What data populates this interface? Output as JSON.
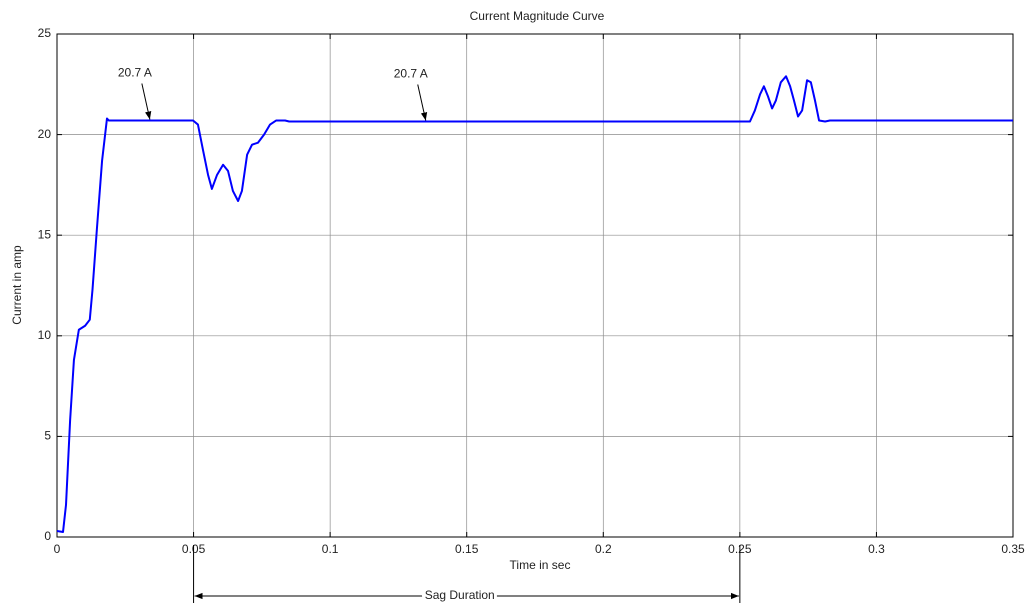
{
  "chart_data": {
    "type": "line",
    "title": "Current Magnitude Curve",
    "x_label": "Time in sec",
    "y_label": "Current in amp",
    "x": [
      0,
      0.0022,
      0.0033,
      0.0048,
      0.0062,
      0.008,
      0.0103,
      0.012,
      0.013,
      0.0146,
      0.0165,
      0.0183,
      0.019,
      0.0498,
      0.0516,
      0.0535,
      0.0553,
      0.0567,
      0.0586,
      0.0608,
      0.0626,
      0.0644,
      0.0663,
      0.0677,
      0.0696,
      0.0714,
      0.0736,
      0.0758,
      0.078,
      0.0802,
      0.0835,
      0.085,
      0.2537,
      0.2555,
      0.2574,
      0.2588,
      0.2603,
      0.2618,
      0.2632,
      0.265,
      0.2669,
      0.2684,
      0.2698,
      0.2713,
      0.2728,
      0.2746,
      0.276,
      0.2775,
      0.279,
      0.2812,
      0.283,
      0.35
    ],
    "series": [
      {
        "color": "#0000ff",
        "values": [
          0.3,
          0.25,
          1.6,
          5.8,
          8.8,
          10.3,
          10.5,
          10.8,
          12.3,
          15.3,
          18.7,
          20.8,
          20.7,
          20.7,
          20.5,
          19.2,
          18.0,
          17.3,
          18.0,
          18.5,
          18.2,
          17.2,
          16.7,
          17.2,
          19.0,
          19.5,
          19.6,
          20.0,
          20.5,
          20.7,
          20.7,
          20.65,
          20.65,
          21.2,
          22.0,
          22.4,
          21.9,
          21.3,
          21.7,
          22.6,
          22.9,
          22.4,
          21.7,
          20.9,
          21.2,
          22.7,
          22.6,
          21.7,
          20.7,
          20.65,
          20.7,
          20.7
        ]
      }
    ],
    "xlim": [
      0,
      0.35
    ],
    "xticks": [
      0,
      0.05,
      0.1,
      0.15,
      0.2,
      0.25,
      0.3,
      0.35
    ],
    "ylim": [
      0,
      25
    ],
    "yticks": [
      0,
      5,
      10,
      15,
      20,
      25
    ],
    "grid": true,
    "annotations": [
      {
        "text": "20.7 A",
        "x": 0.034,
        "y": 20.7
      },
      {
        "text": "20.7 A",
        "x": 0.135,
        "y": 20.65
      }
    ],
    "span_annotation": {
      "text": "Sag Duration",
      "from": 0.05,
      "to": 0.25
    }
  }
}
